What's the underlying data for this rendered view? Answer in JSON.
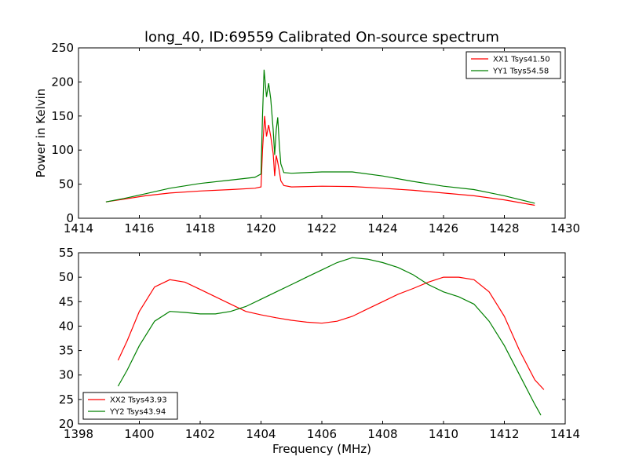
{
  "title": "long_40, ID:69559 Calibrated On-source spectrum",
  "chart_data": [
    {
      "type": "line",
      "title": "long_40, ID:69559 Calibrated On-source spectrum",
      "xlabel": "",
      "ylabel": "Power in Kelvin",
      "xlim": [
        1414,
        1430
      ],
      "ylim": [
        0,
        250
      ],
      "xticks": [
        1414,
        1416,
        1418,
        1420,
        1422,
        1424,
        1426,
        1428,
        1430
      ],
      "yticks": [
        0,
        50,
        100,
        150,
        200,
        250
      ],
      "grid": false,
      "legend_position": "top-right",
      "series": [
        {
          "name": "XX1 Tsys41.50",
          "color": "#ff0000",
          "points": [
            [
              1414.9,
              24
            ],
            [
              1415.5,
              28
            ],
            [
              1416.2,
              33
            ],
            [
              1417,
              37
            ],
            [
              1418,
              40
            ],
            [
              1419,
              42
            ],
            [
              1419.8,
              44
            ],
            [
              1420.0,
              46
            ],
            [
              1420.05,
              100
            ],
            [
              1420.12,
              150
            ],
            [
              1420.18,
              120
            ],
            [
              1420.25,
              137
            ],
            [
              1420.32,
              120
            ],
            [
              1420.4,
              95
            ],
            [
              1420.45,
              62
            ],
            [
              1420.5,
              92
            ],
            [
              1420.55,
              82
            ],
            [
              1420.6,
              70
            ],
            [
              1420.65,
              55
            ],
            [
              1420.75,
              48
            ],
            [
              1421,
              46
            ],
            [
              1422,
              47
            ],
            [
              1423,
              46.5
            ],
            [
              1424,
              44
            ],
            [
              1425,
              41
            ],
            [
              1426,
              37
            ],
            [
              1427,
              33
            ],
            [
              1428,
              27
            ],
            [
              1429,
              19
            ]
          ]
        },
        {
          "name": "YY1 Tsys54.58",
          "color": "#008000",
          "points": [
            [
              1414.9,
              24
            ],
            [
              1415.5,
              29
            ],
            [
              1416.2,
              36
            ],
            [
              1417,
              44
            ],
            [
              1418,
              51
            ],
            [
              1419,
              56
            ],
            [
              1419.8,
              60
            ],
            [
              1420.0,
              65
            ],
            [
              1420.05,
              150
            ],
            [
              1420.1,
              218
            ],
            [
              1420.18,
              178
            ],
            [
              1420.25,
              198
            ],
            [
              1420.32,
              175
            ],
            [
              1420.4,
              130
            ],
            [
              1420.45,
              93
            ],
            [
              1420.5,
              130
            ],
            [
              1420.55,
              148
            ],
            [
              1420.6,
              110
            ],
            [
              1420.65,
              80
            ],
            [
              1420.75,
              67
            ],
            [
              1421,
              66
            ],
            [
              1422,
              68
            ],
            [
              1423,
              68
            ],
            [
              1424,
              62
            ],
            [
              1425,
              54
            ],
            [
              1426,
              47
            ],
            [
              1427,
              42
            ],
            [
              1428,
              33
            ],
            [
              1429,
              22
            ]
          ]
        }
      ]
    },
    {
      "type": "line",
      "title": "",
      "xlabel": "Frequency (MHz)",
      "ylabel": "",
      "xlim": [
        1398,
        1414
      ],
      "ylim": [
        20,
        55
      ],
      "xticks": [
        1398,
        1400,
        1402,
        1404,
        1406,
        1408,
        1410,
        1412,
        1414
      ],
      "yticks": [
        20,
        25,
        30,
        35,
        40,
        45,
        50,
        55
      ],
      "grid": false,
      "legend_position": "bottom-left",
      "series": [
        {
          "name": "XX2 Tsys43.93",
          "color": "#ff0000",
          "points": [
            [
              1399.3,
              33
            ],
            [
              1399.6,
              37
            ],
            [
              1400,
              43
            ],
            [
              1400.5,
              48
            ],
            [
              1401,
              49.5
            ],
            [
              1401.5,
              49
            ],
            [
              1402,
              47.5
            ],
            [
              1402.5,
              46
            ],
            [
              1403,
              44.5
            ],
            [
              1403.5,
              43
            ],
            [
              1404,
              42.3
            ],
            [
              1404.5,
              41.7
            ],
            [
              1405,
              41.2
            ],
            [
              1405.5,
              40.8
            ],
            [
              1406,
              40.6
            ],
            [
              1406.5,
              41
            ],
            [
              1407,
              42
            ],
            [
              1407.5,
              43.5
            ],
            [
              1408,
              45
            ],
            [
              1408.5,
              46.5
            ],
            [
              1409,
              47.7
            ],
            [
              1409.5,
              49
            ],
            [
              1410,
              50
            ],
            [
              1410.5,
              50
            ],
            [
              1411,
              49.5
            ],
            [
              1411.5,
              47
            ],
            [
              1412,
              42
            ],
            [
              1412.5,
              35
            ],
            [
              1413,
              29
            ],
            [
              1413.3,
              27
            ]
          ]
        },
        {
          "name": "YY2 Tsys43.94",
          "color": "#008000",
          "points": [
            [
              1399.3,
              27.7
            ],
            [
              1399.6,
              31
            ],
            [
              1400,
              36
            ],
            [
              1400.5,
              41
            ],
            [
              1401,
              43
            ],
            [
              1401.5,
              42.8
            ],
            [
              1402,
              42.5
            ],
            [
              1402.5,
              42.5
            ],
            [
              1403,
              43
            ],
            [
              1403.5,
              44
            ],
            [
              1404,
              45.5
            ],
            [
              1404.5,
              47
            ],
            [
              1405,
              48.5
            ],
            [
              1405.5,
              50
            ],
            [
              1406,
              51.5
            ],
            [
              1406.5,
              53
            ],
            [
              1407,
              54
            ],
            [
              1407.5,
              53.7
            ],
            [
              1408,
              53
            ],
            [
              1408.5,
              52
            ],
            [
              1409,
              50.5
            ],
            [
              1409.5,
              48.5
            ],
            [
              1410,
              47
            ],
            [
              1410.5,
              46
            ],
            [
              1411,
              44.5
            ],
            [
              1411.5,
              41
            ],
            [
              1412,
              36
            ],
            [
              1412.5,
              30
            ],
            [
              1413,
              24
            ],
            [
              1413.2,
              21.8
            ]
          ]
        }
      ]
    }
  ]
}
